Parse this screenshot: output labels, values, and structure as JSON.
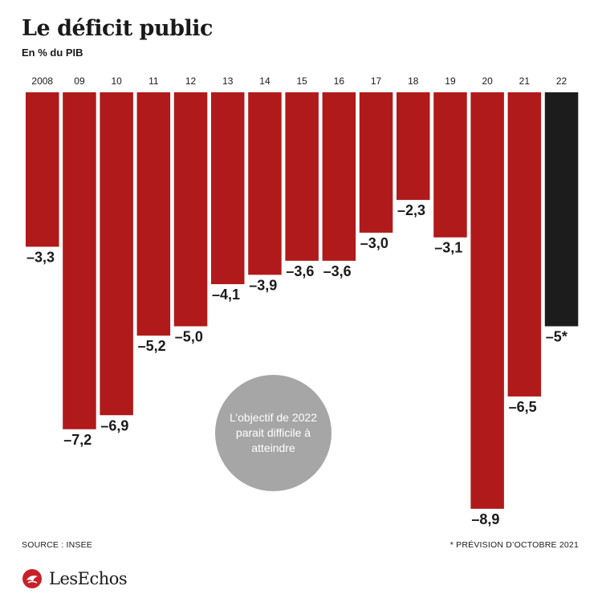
{
  "header": {
    "title": "Le déficit public",
    "subtitle": "En % du PIB"
  },
  "annotation": {
    "bubble_text": "L’objectif de 2022 parait difficile à atteindre"
  },
  "footer": {
    "source": "SOURCE : INSEE",
    "note": "* PRÉVISION D’OCTOBRE 2021",
    "brand": "LesEchos"
  },
  "colors": {
    "bar": "#b01a1a",
    "forecast_bar": "#1c1c1c",
    "bubble": "#a6a6a6",
    "logo": "#c8202b"
  },
  "chart_data": {
    "type": "bar",
    "title": "Le déficit public",
    "ylabel": "En % du PIB",
    "categories": [
      "2008",
      "09",
      "10",
      "11",
      "12",
      "13",
      "14",
      "15",
      "16",
      "17",
      "18",
      "19",
      "20",
      "21",
      "22"
    ],
    "values": [
      -3.3,
      -7.2,
      -6.9,
      -5.2,
      -5.0,
      -4.1,
      -3.9,
      -3.6,
      -3.6,
      -3.0,
      -2.3,
      -3.1,
      -8.9,
      -6.5,
      -5
    ],
    "value_labels": [
      "–3,3",
      "–7,2",
      "–6,9",
      "–5,2",
      "–5,0",
      "–4,1",
      "–3,9",
      "–3,6",
      "–3,6",
      "–3,0",
      "–2,3",
      "–3,1",
      "–8,9",
      "–6,5",
      "–5*"
    ],
    "forecast": [
      false,
      false,
      false,
      false,
      false,
      false,
      false,
      false,
      false,
      false,
      false,
      false,
      false,
      false,
      true
    ],
    "ylim": [
      -9,
      0
    ],
    "grid": false,
    "legend": "none"
  }
}
